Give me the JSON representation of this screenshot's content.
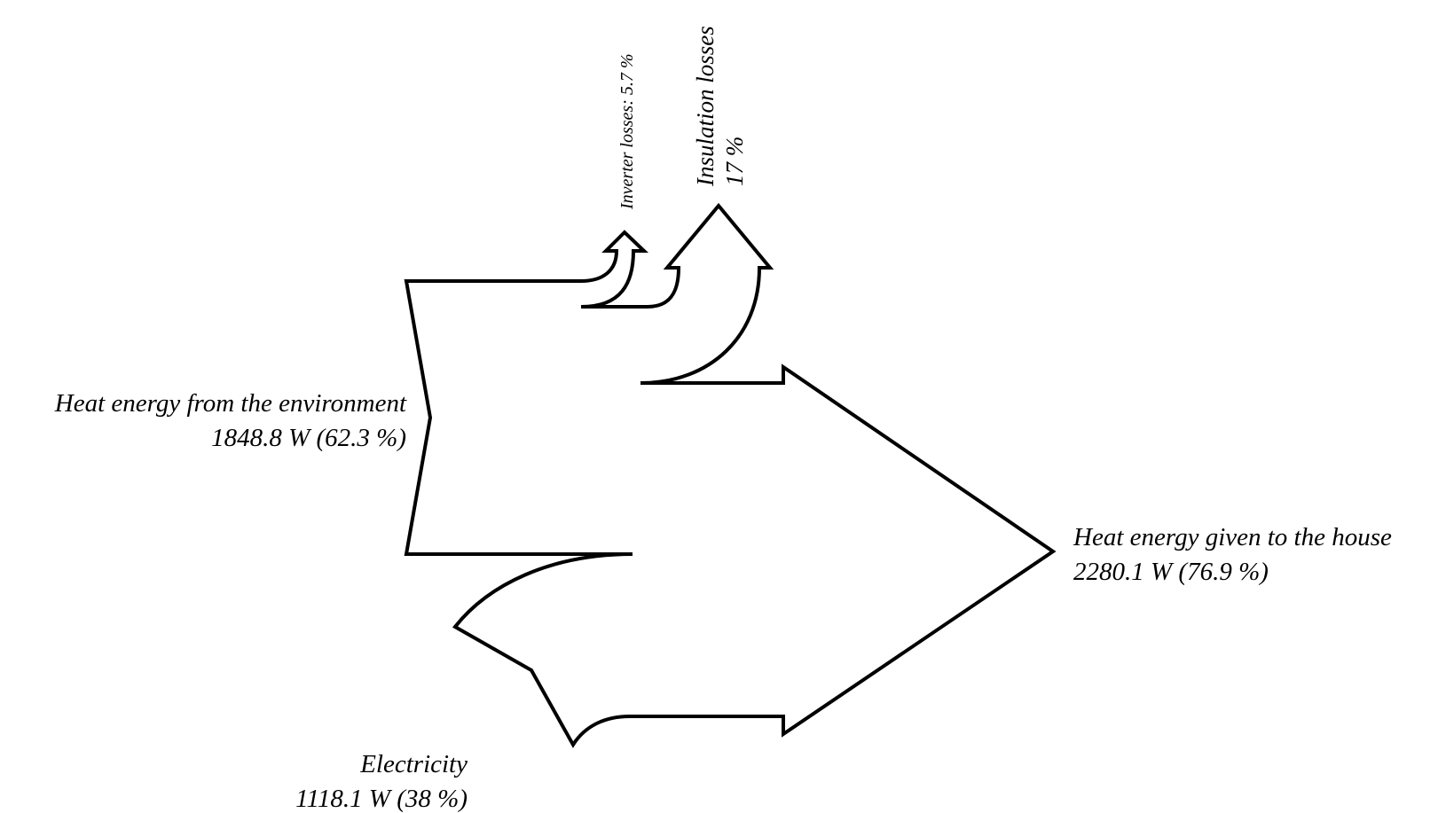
{
  "diagram": {
    "type": "sankey",
    "stroke_color": "#000000",
    "fill_color": "#ffffff",
    "flows": [
      {
        "id": "environment",
        "label": "Heat energy from the environment",
        "value_text": "1848.8 W (62.3 %)",
        "direction": "input"
      },
      {
        "id": "electricity",
        "label": "Electricity",
        "value_text": "1118.1 W (38 %)",
        "direction": "input"
      },
      {
        "id": "inverter",
        "label": "Inverter losses: 5.7 %",
        "direction": "output"
      },
      {
        "id": "insulation",
        "label": "Insulation losses",
        "value_text": "17 %",
        "direction": "output"
      },
      {
        "id": "house",
        "label": "Heat energy given to the house",
        "value_text": "2280.1 W (76.9 %)",
        "direction": "output"
      }
    ]
  }
}
